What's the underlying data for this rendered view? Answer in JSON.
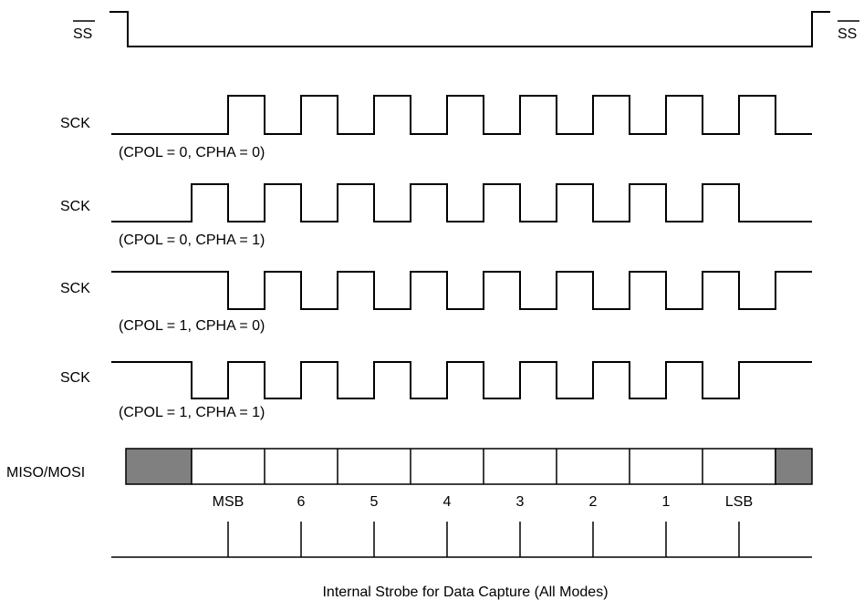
{
  "ss_signal": {
    "label_left": "SS",
    "label_right": "SS"
  },
  "sck_signals": [
    {
      "label": "SCK",
      "mode": "(CPOL = 0, CPHA = 0)",
      "idle": "low",
      "phase": 0
    },
    {
      "label": "SCK",
      "mode": "(CPOL = 0, CPHA = 1)",
      "idle": "low",
      "phase": 1
    },
    {
      "label": "SCK",
      "mode": "(CPOL = 1, CPHA = 0)",
      "idle": "high",
      "phase": 0
    },
    {
      "label": "SCK",
      "mode": "(CPOL = 1, CPHA = 1)",
      "idle": "high",
      "phase": 1
    }
  ],
  "data_line": {
    "label": "MISO/MOSI",
    "bits": [
      "MSB",
      "6",
      "5",
      "4",
      "3",
      "2",
      "1",
      "LSB"
    ],
    "fill_color": "#808080"
  },
  "strobe": {
    "caption": "Internal Strobe for Data Capture (All Modes)"
  }
}
